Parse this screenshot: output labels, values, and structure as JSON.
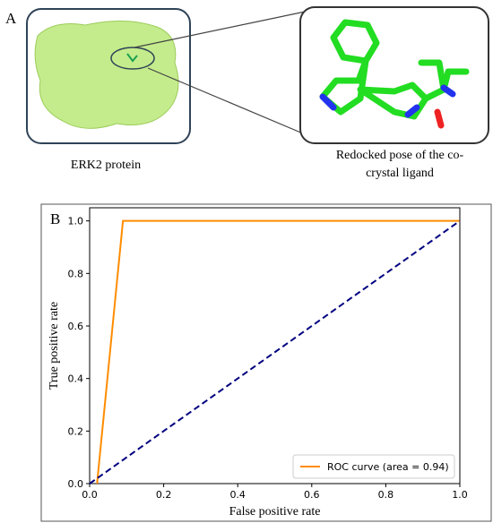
{
  "panel_a": {
    "label": "A",
    "left_caption": "ERK2 protein",
    "right_caption_lines": [
      "Redocked pose of the co-",
      "crystal ligand"
    ]
  },
  "chart_data": {
    "type": "line",
    "panel_label": "B",
    "xlabel": "False positive rate",
    "ylabel": "True positive rate",
    "xlim": [
      0,
      1
    ],
    "ylim": [
      0,
      1.05
    ],
    "xticks": [
      {
        "value": 0,
        "label": "0.0"
      },
      0.2,
      0.4,
      0.6,
      0.8,
      {
        "value": 1,
        "label": "1.0"
      }
    ],
    "yticks": [
      {
        "value": 0,
        "label": "0.0"
      },
      0.2,
      0.4,
      0.6,
      0.8,
      {
        "value": 1,
        "label": "1.0"
      }
    ],
    "legend": "lower right",
    "series": [
      {
        "name": "ROC curve (area = 0.94)",
        "color": "#ff8c00",
        "dash": "solid",
        "x": [
          0.02,
          0.09,
          1
        ],
        "values": [
          0,
          1,
          1
        ]
      },
      {
        "color": "#000080",
        "dash": "dashed",
        "x": [
          0,
          1
        ],
        "values": [
          0,
          1
        ]
      }
    ]
  }
}
